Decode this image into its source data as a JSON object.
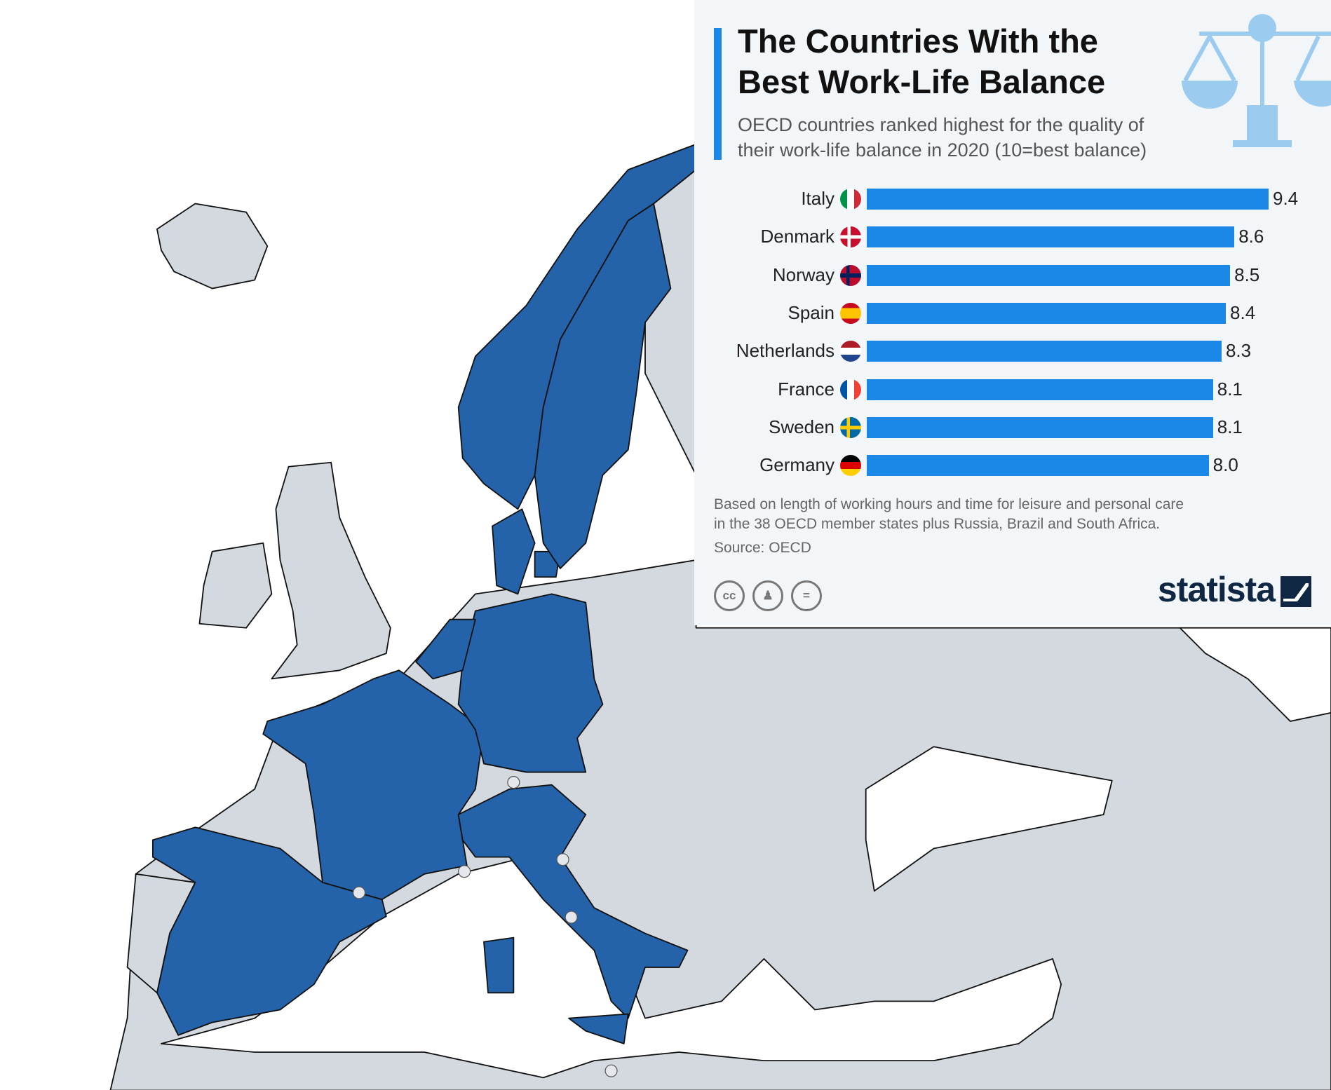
{
  "title": "The Countries With the Best Work-Life Balance",
  "title_lines": [
    "The Countries With the",
    "Best Work-Life Balance"
  ],
  "subtitle_lines": [
    "OECD countries ranked highest for the quality of",
    "their work-life balance in 2020 (10=best balance)"
  ],
  "note_lines": [
    "Based on length of working hours and time for leisure and personal care",
    "in the 38 OECD member states plus Russia, Brazil and South Africa."
  ],
  "source": "Source: OECD",
  "brand": "statista",
  "icons": [
    "scales-of-justice-icon",
    "cc-icon",
    "attribution-icon",
    "no-derivatives-icon",
    "statista-logo-icon"
  ],
  "colors": {
    "bar": "#1b87e6",
    "highlighted_country": "#2462a9",
    "other_country": "#d3d9de",
    "panel": "#f3f6f9"
  },
  "chart_data": {
    "type": "bar",
    "orientation": "horizontal",
    "categories": [
      "Italy",
      "Denmark",
      "Norway",
      "Spain",
      "Netherlands",
      "France",
      "Sweden",
      "Germany"
    ],
    "values": [
      9.4,
      8.6,
      8.5,
      8.4,
      8.3,
      8.1,
      8.1,
      8.0
    ],
    "value_labels": [
      "9.4",
      "8.6",
      "8.5",
      "8.4",
      "8.3",
      "8.1",
      "8.1",
      "8.0"
    ],
    "xlim": [
      0,
      10
    ],
    "grid": false
  },
  "map": {
    "type": "choropleth",
    "region": "Europe",
    "highlighted": [
      "Italy",
      "Denmark",
      "Norway",
      "Spain",
      "Netherlands",
      "France",
      "Sweden",
      "Germany"
    ]
  }
}
